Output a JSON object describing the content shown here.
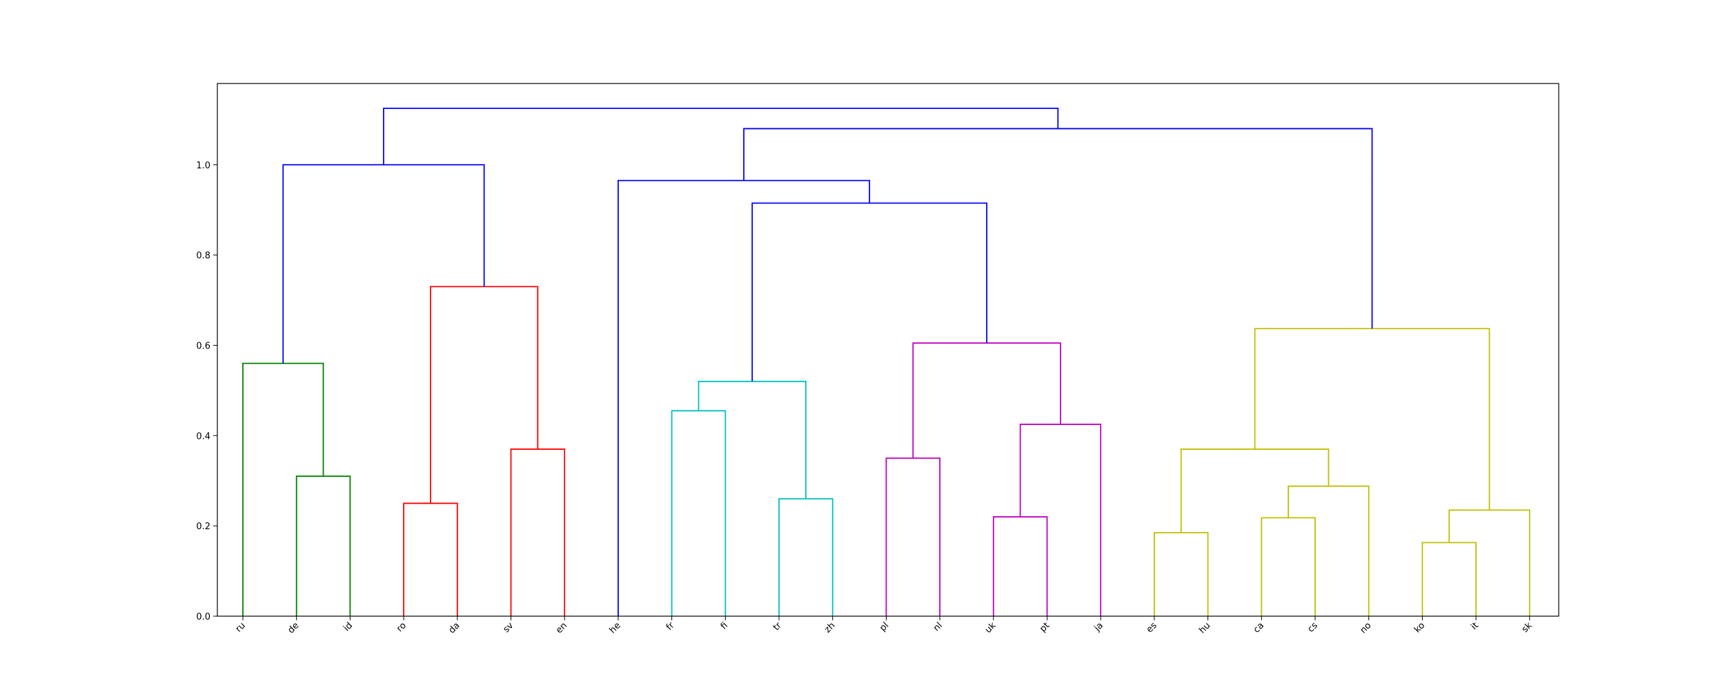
{
  "chart_data": {
    "type": "dendrogram",
    "ylim": [
      0,
      1.18
    ],
    "y_ticks": [
      "0.0",
      "0.2",
      "0.4",
      "0.6",
      "0.8",
      "1.0"
    ],
    "leaves": [
      "ru",
      "de",
      "id",
      "ro",
      "da",
      "sv",
      "en",
      "he",
      "fr",
      "fi",
      "tr",
      "zh",
      "pl",
      "nl",
      "uk",
      "pt",
      "ja",
      "es",
      "hu",
      "ca",
      "cs",
      "no",
      "ko",
      "it",
      "sk"
    ],
    "colors": {
      "green": "#008000",
      "red": "#ff0000",
      "cyan": "#00bfbf",
      "magenta": "#bf00bf",
      "olive": "#bfbf00",
      "above_threshold": "#0000ff"
    },
    "merges": [
      {
        "left": "de",
        "right": "id",
        "height": 0.31,
        "color": "green"
      },
      {
        "left": "ru",
        "right": "de+id",
        "height": 0.56,
        "color": "green"
      },
      {
        "left": "ro",
        "right": "da",
        "height": 0.25,
        "color": "red"
      },
      {
        "left": "sv",
        "right": "en",
        "height": 0.37,
        "color": "red"
      },
      {
        "left": "ro+da",
        "right": "sv+en",
        "height": 0.73,
        "color": "red"
      },
      {
        "left": "green cluster",
        "right": "red cluster",
        "height": 1.0,
        "color": "above_threshold"
      },
      {
        "left": "fr",
        "right": "fi",
        "height": 0.455,
        "color": "cyan"
      },
      {
        "left": "tr",
        "right": "zh",
        "height": 0.26,
        "color": "cyan"
      },
      {
        "left": "fr+fi",
        "right": "tr+zh",
        "height": 0.52,
        "color": "cyan"
      },
      {
        "left": "pl",
        "right": "nl",
        "height": 0.35,
        "color": "magenta"
      },
      {
        "left": "uk",
        "right": "pt",
        "height": 0.22,
        "color": "magenta"
      },
      {
        "left": "uk+pt",
        "right": "ja",
        "height": 0.425,
        "color": "magenta"
      },
      {
        "left": "pl+nl",
        "right": "uk+pt+ja",
        "height": 0.605,
        "color": "magenta"
      },
      {
        "left": "cyan cluster",
        "right": "magenta cluster",
        "height": 0.915,
        "color": "above_threshold"
      },
      {
        "left": "he",
        "right": "cyan+magenta",
        "height": 0.965,
        "color": "above_threshold"
      },
      {
        "left": "es",
        "right": "hu",
        "height": 0.185,
        "color": "olive"
      },
      {
        "left": "ca",
        "right": "cs",
        "height": 0.218,
        "color": "olive"
      },
      {
        "left": "ca+cs",
        "right": "no",
        "height": 0.288,
        "color": "olive"
      },
      {
        "left": "es+hu",
        "right": "ca+cs+no",
        "height": 0.37,
        "color": "olive"
      },
      {
        "left": "ko",
        "right": "it",
        "height": 0.163,
        "color": "olive"
      },
      {
        "left": "ko+it",
        "right": "sk",
        "height": 0.235,
        "color": "olive"
      },
      {
        "left": "es..no",
        "right": "ko+it+sk",
        "height": 0.637,
        "color": "olive"
      },
      {
        "left": "he..ja",
        "right": "olive cluster",
        "height": 1.08,
        "color": "above_threshold"
      },
      {
        "left": "ru..en",
        "right": "he..sk",
        "height": 1.125,
        "color": "above_threshold"
      }
    ]
  }
}
